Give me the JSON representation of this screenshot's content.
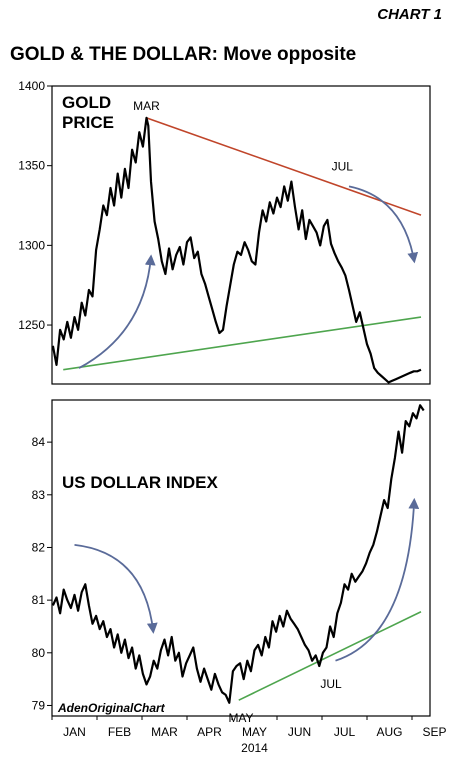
{
  "header": {
    "chart_number": "CHART 1",
    "title": "GOLD & THE DOLLAR: Move opposite"
  },
  "credit": "AdenOriginalChart",
  "colors": {
    "series": "#000000",
    "resistance": "#c0452a",
    "support": "#4ea54e",
    "arrow": "#5a6b99"
  },
  "chart_data": [
    {
      "type": "line",
      "title": "GOLD PRICE",
      "title_lines": [
        "GOLD",
        "PRICE"
      ],
      "ylim": [
        1213,
        1400
      ],
      "yticks": [
        1250,
        1300,
        1350,
        1400
      ],
      "xlim": [
        0,
        8.4
      ],
      "annotations": [
        {
          "text": "MAR",
          "x": 2.1,
          "y": 1385
        },
        {
          "text": "JUL",
          "x": 6.45,
          "y": 1347
        }
      ],
      "trendlines": [
        {
          "name": "resistance",
          "points": [
            [
              2.1,
              1380
            ],
            [
              8.2,
              1319
            ]
          ]
        },
        {
          "name": "support",
          "points": [
            [
              0.25,
              1222
            ],
            [
              8.2,
              1255
            ]
          ]
        }
      ],
      "arrows": [
        {
          "from": [
            0.6,
            1223
          ],
          "ctrl": [
            2.05,
            1245
          ],
          "to": [
            2.2,
            1293
          ]
        },
        {
          "from": [
            6.6,
            1337
          ],
          "ctrl": [
            7.8,
            1330
          ],
          "to": [
            8.05,
            1290
          ]
        }
      ],
      "series": [
        {
          "x": [
            0.02,
            0.1,
            0.18,
            0.26,
            0.34,
            0.42,
            0.5,
            0.58,
            0.66,
            0.74,
            0.82,
            0.9,
            0.98,
            1.06,
            1.14,
            1.22,
            1.3,
            1.38,
            1.46,
            1.54,
            1.62,
            1.7,
            1.78,
            1.86,
            1.94,
            2.02,
            2.1,
            2.14,
            2.2,
            2.28,
            2.36,
            2.44,
            2.52,
            2.6,
            2.68,
            2.76,
            2.84,
            2.92,
            3.0,
            3.08,
            3.16,
            3.24,
            3.32,
            3.4,
            3.48,
            3.56,
            3.64,
            3.72,
            3.8,
            3.88,
            3.96,
            4.04,
            4.12,
            4.2,
            4.28,
            4.36,
            4.44,
            4.52,
            4.6,
            4.68,
            4.76,
            4.84,
            4.92,
            5.0,
            5.08,
            5.16,
            5.24,
            5.32,
            5.4,
            5.48,
            5.56,
            5.64,
            5.72,
            5.8,
            5.88,
            5.96,
            6.04,
            6.12,
            6.2,
            6.28,
            6.36,
            6.44,
            6.52,
            6.6,
            6.68,
            6.76,
            6.84,
            6.92,
            7.0,
            7.08,
            7.16,
            7.24,
            7.32,
            7.4,
            7.48,
            7.56,
            7.64,
            7.72,
            7.8,
            7.88,
            7.96,
            8.04,
            8.12,
            8.2
          ],
          "values": [
            1237,
            1225,
            1247,
            1241,
            1252,
            1242,
            1255,
            1247,
            1264,
            1256,
            1272,
            1268,
            1297,
            1310,
            1325,
            1319,
            1336,
            1325,
            1345,
            1330,
            1348,
            1336,
            1360,
            1352,
            1371,
            1362,
            1380,
            1375,
            1340,
            1315,
            1304,
            1290,
            1282,
            1298,
            1285,
            1294,
            1299,
            1288,
            1302,
            1305,
            1292,
            1296,
            1282,
            1276,
            1268,
            1260,
            1252,
            1245,
            1247,
            1262,
            1275,
            1288,
            1296,
            1294,
            1302,
            1297,
            1290,
            1288,
            1308,
            1322,
            1315,
            1327,
            1320,
            1330,
            1324,
            1337,
            1328,
            1340,
            1324,
            1310,
            1322,
            1304,
            1316,
            1312,
            1308,
            1300,
            1312,
            1316,
            1301,
            1295,
            1290,
            1286,
            1281,
            1272,
            1262,
            1252,
            1258,
            1248,
            1238,
            1232,
            1223,
            1220,
            1218,
            1216,
            1214,
            1215,
            1216,
            1217,
            1218,
            1219,
            1220,
            1221,
            1221,
            1222
          ]
        }
      ]
    },
    {
      "type": "line",
      "title": "US DOLLAR INDEX",
      "ylim": [
        78.8,
        84.8
      ],
      "yticks": [
        79,
        80,
        81,
        82,
        83,
        84
      ],
      "xlim": [
        0,
        8.4
      ],
      "xticks": [
        "JAN",
        "FEB",
        "MAR",
        "APR",
        "MAY",
        "JUN",
        "JUL",
        "AUG",
        "SEP"
      ],
      "xlabel": "2014",
      "annotations": [
        {
          "text": "MAY",
          "x": 4.2,
          "y": 78.95
        },
        {
          "text": "JUL",
          "x": 6.2,
          "y": 79.6
        }
      ],
      "trendlines": [
        {
          "name": "support",
          "points": [
            [
              4.15,
              79.1
            ],
            [
              8.2,
              80.78
            ]
          ]
        }
      ],
      "arrows": [
        {
          "from": [
            0.5,
            82.05
          ],
          "ctrl": [
            2.05,
            81.9
          ],
          "to": [
            2.25,
            80.4
          ]
        },
        {
          "from": [
            6.3,
            79.85
          ],
          "ctrl": [
            7.9,
            80.3
          ],
          "to": [
            8.05,
            82.9
          ]
        }
      ],
      "series": [
        {
          "x": [
            0.02,
            0.1,
            0.18,
            0.26,
            0.34,
            0.42,
            0.5,
            0.58,
            0.66,
            0.74,
            0.82,
            0.9,
            0.98,
            1.06,
            1.14,
            1.22,
            1.3,
            1.38,
            1.46,
            1.54,
            1.62,
            1.7,
            1.78,
            1.86,
            1.94,
            2.02,
            2.1,
            2.18,
            2.26,
            2.34,
            2.42,
            2.5,
            2.58,
            2.66,
            2.74,
            2.82,
            2.9,
            2.98,
            3.06,
            3.14,
            3.22,
            3.3,
            3.38,
            3.46,
            3.54,
            3.62,
            3.7,
            3.78,
            3.86,
            3.94,
            4.02,
            4.1,
            4.18,
            4.26,
            4.34,
            4.42,
            4.5,
            4.58,
            4.66,
            4.74,
            4.82,
            4.9,
            4.98,
            5.06,
            5.14,
            5.22,
            5.3,
            5.38,
            5.46,
            5.54,
            5.62,
            5.7,
            5.78,
            5.86,
            5.94,
            6.02,
            6.1,
            6.18,
            6.26,
            6.34,
            6.42,
            6.5,
            6.58,
            6.66,
            6.74,
            6.82,
            6.9,
            6.98,
            7.06,
            7.14,
            7.22,
            7.3,
            7.38,
            7.46,
            7.54,
            7.62,
            7.7,
            7.78,
            7.86,
            7.94,
            8.02,
            8.1,
            8.18,
            8.26
          ],
          "values": [
            80.9,
            81.05,
            80.75,
            81.2,
            81.0,
            80.85,
            81.1,
            80.8,
            81.15,
            81.3,
            80.9,
            80.55,
            80.7,
            80.45,
            80.6,
            80.3,
            80.45,
            80.1,
            80.35,
            80.0,
            80.25,
            79.9,
            80.1,
            79.7,
            79.95,
            79.6,
            79.4,
            79.55,
            79.85,
            79.7,
            80.05,
            80.25,
            79.95,
            80.3,
            79.85,
            80.0,
            79.55,
            79.8,
            79.95,
            80.1,
            79.7,
            79.45,
            79.7,
            79.5,
            79.3,
            79.6,
            79.4,
            79.25,
            79.2,
            79.05,
            79.65,
            79.75,
            79.8,
            79.5,
            79.85,
            79.65,
            80.05,
            80.15,
            79.95,
            80.3,
            80.1,
            80.6,
            80.4,
            80.7,
            80.5,
            80.8,
            80.65,
            80.55,
            80.45,
            80.3,
            80.15,
            80.05,
            79.85,
            79.95,
            79.75,
            80.0,
            80.1,
            80.5,
            80.3,
            80.75,
            80.95,
            81.3,
            81.2,
            81.5,
            81.35,
            81.45,
            81.55,
            81.7,
            81.9,
            82.05,
            82.3,
            82.6,
            82.9,
            82.75,
            83.3,
            83.7,
            84.2,
            83.8,
            84.4,
            84.3,
            84.55,
            84.45,
            84.7,
            84.6
          ]
        }
      ]
    }
  ]
}
